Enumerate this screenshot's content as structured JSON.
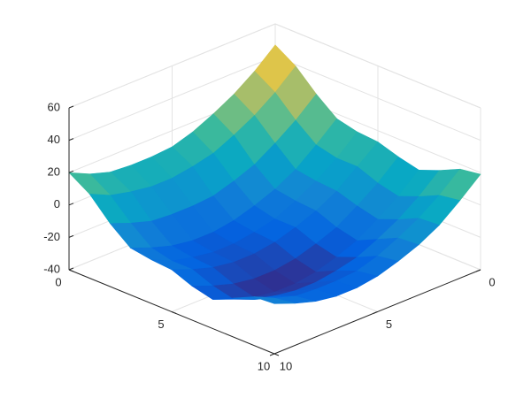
{
  "chart_data": {
    "type": "surface",
    "colormap": "parula",
    "grid": true,
    "x": [
      0,
      1,
      2,
      3,
      4,
      5,
      6,
      7,
      8,
      9,
      10
    ],
    "y": [
      0,
      1,
      2,
      3,
      4,
      5,
      6,
      7,
      8,
      9,
      10
    ],
    "z": [
      [
        47,
        36,
        27,
        20,
        14,
        10,
        9,
        9,
        10,
        14,
        20
      ],
      [
        39,
        28,
        19,
        12,
        6,
        3,
        1,
        1,
        3,
        6,
        12
      ],
      [
        27,
        16,
        7,
        -1,
        -6,
        -10,
        -11,
        -11,
        -10,
        -6,
        -1
      ],
      [
        17,
        6,
        -4,
        -11,
        -16,
        -20,
        -22,
        -22,
        -20,
        -16,
        -11
      ],
      [
        14,
        3,
        -6,
        -13,
        -19,
        -22,
        -24,
        -24,
        -22,
        -19,
        -13
      ],
      [
        13,
        3,
        -7,
        -14,
        -19,
        -23,
        -25,
        -25,
        -23,
        -19,
        -14
      ],
      [
        9,
        -2,
        -11,
        -19,
        -24,
        -28,
        -30,
        -30,
        -28,
        -24,
        -19
      ],
      [
        6,
        -5,
        -14,
        -22,
        -27,
        -31,
        -33,
        -33,
        -31,
        -27,
        -22
      ],
      [
        11,
        0,
        -9,
        -16,
        -22,
        -25,
        -27,
        -27,
        -25,
        -22,
        -16
      ],
      [
        17,
        6,
        -3,
        -10,
        -16,
        -20,
        -21,
        -21,
        -20,
        -16,
        -10
      ],
      [
        19,
        8,
        -2,
        -9,
        -14,
        -18,
        -20,
        -20,
        -18,
        -14,
        -9
      ]
    ],
    "xlim": [
      0,
      10
    ],
    "xticks": [
      0,
      5,
      10
    ],
    "ylim": [
      0,
      10
    ],
    "yticks": [
      0,
      5,
      10
    ],
    "zlim": [
      -40,
      60
    ],
    "zticks": [
      -40,
      -20,
      0,
      20,
      40,
      60
    ]
  }
}
